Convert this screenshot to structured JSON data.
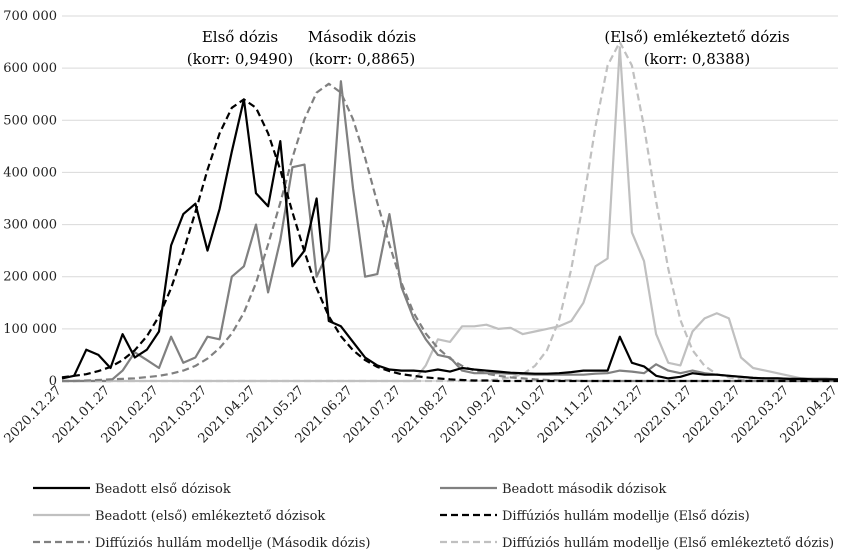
{
  "chart_data": {
    "type": "line",
    "annotations": [
      "Első dózis",
      "(korr: 0,9490)",
      "Második dózis",
      "(korr: 0,8865)",
      "(Első) emlékeztető dózis",
      "(korr: 0,8388)"
    ],
    "categories": [
      "2020.12.27",
      null,
      null,
      null,
      "2021.01.27",
      null,
      null,
      null,
      "2021.02.27",
      null,
      null,
      null,
      "2021.03.27",
      null,
      null,
      null,
      "2021.04.27",
      null,
      null,
      null,
      "2021.05.27",
      null,
      null,
      null,
      "2021.06.27",
      null,
      null,
      null,
      "2021.07.27",
      null,
      null,
      null,
      "2021.08.27",
      null,
      null,
      null,
      "2021.09.27",
      null,
      null,
      null,
      "2021.10.27",
      null,
      null,
      null,
      "2021.11.27",
      null,
      null,
      null,
      "2021.12.27",
      null,
      null,
      null,
      "2022.01.27",
      null,
      null,
      null,
      "2022.02.27",
      null,
      null,
      null,
      "2022.03.27",
      null,
      null,
      null,
      "2022.04.27"
    ],
    "series": [
      {
        "name": "Beadott első dózisok",
        "color": "#000000",
        "dashed": false,
        "values": [
          5000,
          10000,
          60000,
          50000,
          25000,
          90000,
          45000,
          60000,
          95000,
          260000,
          320000,
          340000,
          250000,
          330000,
          440000,
          540000,
          360000,
          335000,
          460000,
          220000,
          250000,
          350000,
          115000,
          105000,
          75000,
          45000,
          30000,
          22000,
          20000,
          20000,
          18000,
          22000,
          18000,
          25000,
          22000,
          20000,
          18000,
          16000,
          15000,
          14000,
          14000,
          15000,
          17000,
          20000,
          20000,
          20000,
          85000,
          35000,
          28000,
          10000,
          5000,
          8000,
          15000,
          12000,
          12000,
          10000,
          8000,
          6000,
          5000,
          5000,
          4000,
          4000,
          3000,
          3000,
          3000
        ]
      },
      {
        "name": "Beadott második dózisok",
        "color": "#808080",
        "dashed": false,
        "values": [
          0,
          0,
          0,
          0,
          0,
          20000,
          55000,
          40000,
          25000,
          85000,
          35000,
          45000,
          85000,
          80000,
          200000,
          220000,
          300000,
          170000,
          270000,
          410000,
          415000,
          200000,
          250000,
          575000,
          370000,
          200000,
          205000,
          320000,
          180000,
          120000,
          80000,
          50000,
          45000,
          20000,
          15000,
          15000,
          15000,
          14000,
          13000,
          12000,
          12000,
          12000,
          12000,
          12000,
          14000,
          15000,
          20000,
          18000,
          15000,
          32000,
          20000,
          15000,
          20000,
          15000,
          12000,
          10000,
          8000,
          6000,
          5000,
          5000,
          4000,
          4000,
          3000,
          3000,
          3000
        ]
      },
      {
        "name": "Beadott (első) emlékeztető dózisok",
        "color": "#c0c0c0",
        "dashed": false,
        "values": [
          0,
          0,
          0,
          0,
          0,
          0,
          0,
          0,
          0,
          0,
          0,
          0,
          0,
          0,
          0,
          0,
          0,
          0,
          0,
          0,
          0,
          0,
          0,
          0,
          0,
          0,
          0,
          0,
          0,
          0,
          30000,
          80000,
          75000,
          105000,
          105000,
          108000,
          100000,
          102000,
          90000,
          95000,
          100000,
          105000,
          115000,
          150000,
          220000,
          235000,
          640000,
          285000,
          230000,
          90000,
          35000,
          30000,
          95000,
          120000,
          130000,
          120000,
          45000,
          25000,
          20000,
          15000,
          10000,
          5000,
          5000,
          5000,
          3000
        ]
      },
      {
        "name": "Diffúziós hullám modellje (Első dózis)",
        "color": "#000000",
        "dashed": true,
        "values": [
          7000,
          10000,
          13000,
          19000,
          27000,
          40000,
          59000,
          86000,
          124000,
          178000,
          248000,
          324000,
          405000,
          475000,
          524000,
          540000,
          524000,
          475000,
          405000,
          324000,
          248000,
          178000,
          124000,
          86000,
          59000,
          40000,
          27000,
          19000,
          13000,
          10000,
          7000,
          5000,
          3000,
          2000,
          1000,
          1000,
          0,
          0,
          0,
          0,
          0,
          0,
          0,
          0,
          0,
          0,
          0,
          0,
          0,
          0,
          0,
          0,
          0,
          0,
          0,
          0,
          0,
          0,
          0,
          0,
          0,
          0,
          0,
          0,
          0
        ]
      },
      {
        "name": "Diffúziós hullám modellje (Második dózis)",
        "color": "#808080",
        "dashed": true,
        "values": [
          0,
          0,
          1000,
          2000,
          3000,
          4000,
          5100,
          7400,
          10000,
          14000,
          20000,
          29000,
          43000,
          63000,
          91000,
          131000,
          188000,
          262000,
          342000,
          428000,
          502000,
          553000,
          570000,
          553000,
          502000,
          428000,
          342000,
          262000,
          188000,
          131000,
          91000,
          63000,
          43000,
          29000,
          20000,
          14000,
          10000,
          7000,
          5000,
          3000,
          2000,
          1000,
          1000,
          0,
          0,
          0,
          0,
          0,
          0,
          0,
          0,
          0,
          0,
          0,
          0,
          0,
          0,
          0,
          0,
          0,
          0,
          0,
          0,
          0,
          0
        ]
      },
      {
        "name": "Diffúziós hullám modellje (Első emlékeztető dózis)",
        "color": "#c0c0c0",
        "dashed": true,
        "values": [
          0,
          0,
          0,
          0,
          0,
          0,
          0,
          0,
          0,
          0,
          0,
          0,
          0,
          0,
          0,
          0,
          0,
          0,
          0,
          0,
          0,
          0,
          0,
          0,
          0,
          0,
          0,
          0,
          0,
          0,
          0,
          0,
          0,
          0,
          0,
          1000,
          3000,
          7000,
          13000,
          29000,
          59000,
          117000,
          215000,
          345000,
          488000,
          605000,
          650000,
          605000,
          488000,
          345000,
          215000,
          117000,
          59000,
          29000,
          13000,
          7000,
          3000,
          1000,
          0,
          0,
          0,
          0,
          0,
          0,
          0
        ]
      }
    ],
    "ylim": [
      0,
      700000
    ],
    "yticks": [
      0,
      {
        "value": 100000,
        "label": "100 000"
      },
      {
        "value": 200000,
        "label": "200 000"
      },
      {
        "value": 300000,
        "label": "300 000"
      },
      {
        "value": 400000,
        "label": "400 000"
      },
      {
        "value": 500000,
        "label": "500 000"
      },
      {
        "value": 600000,
        "label": "600 000"
      },
      {
        "value": 700000,
        "label": "700 000"
      }
    ],
    "grid": true
  }
}
